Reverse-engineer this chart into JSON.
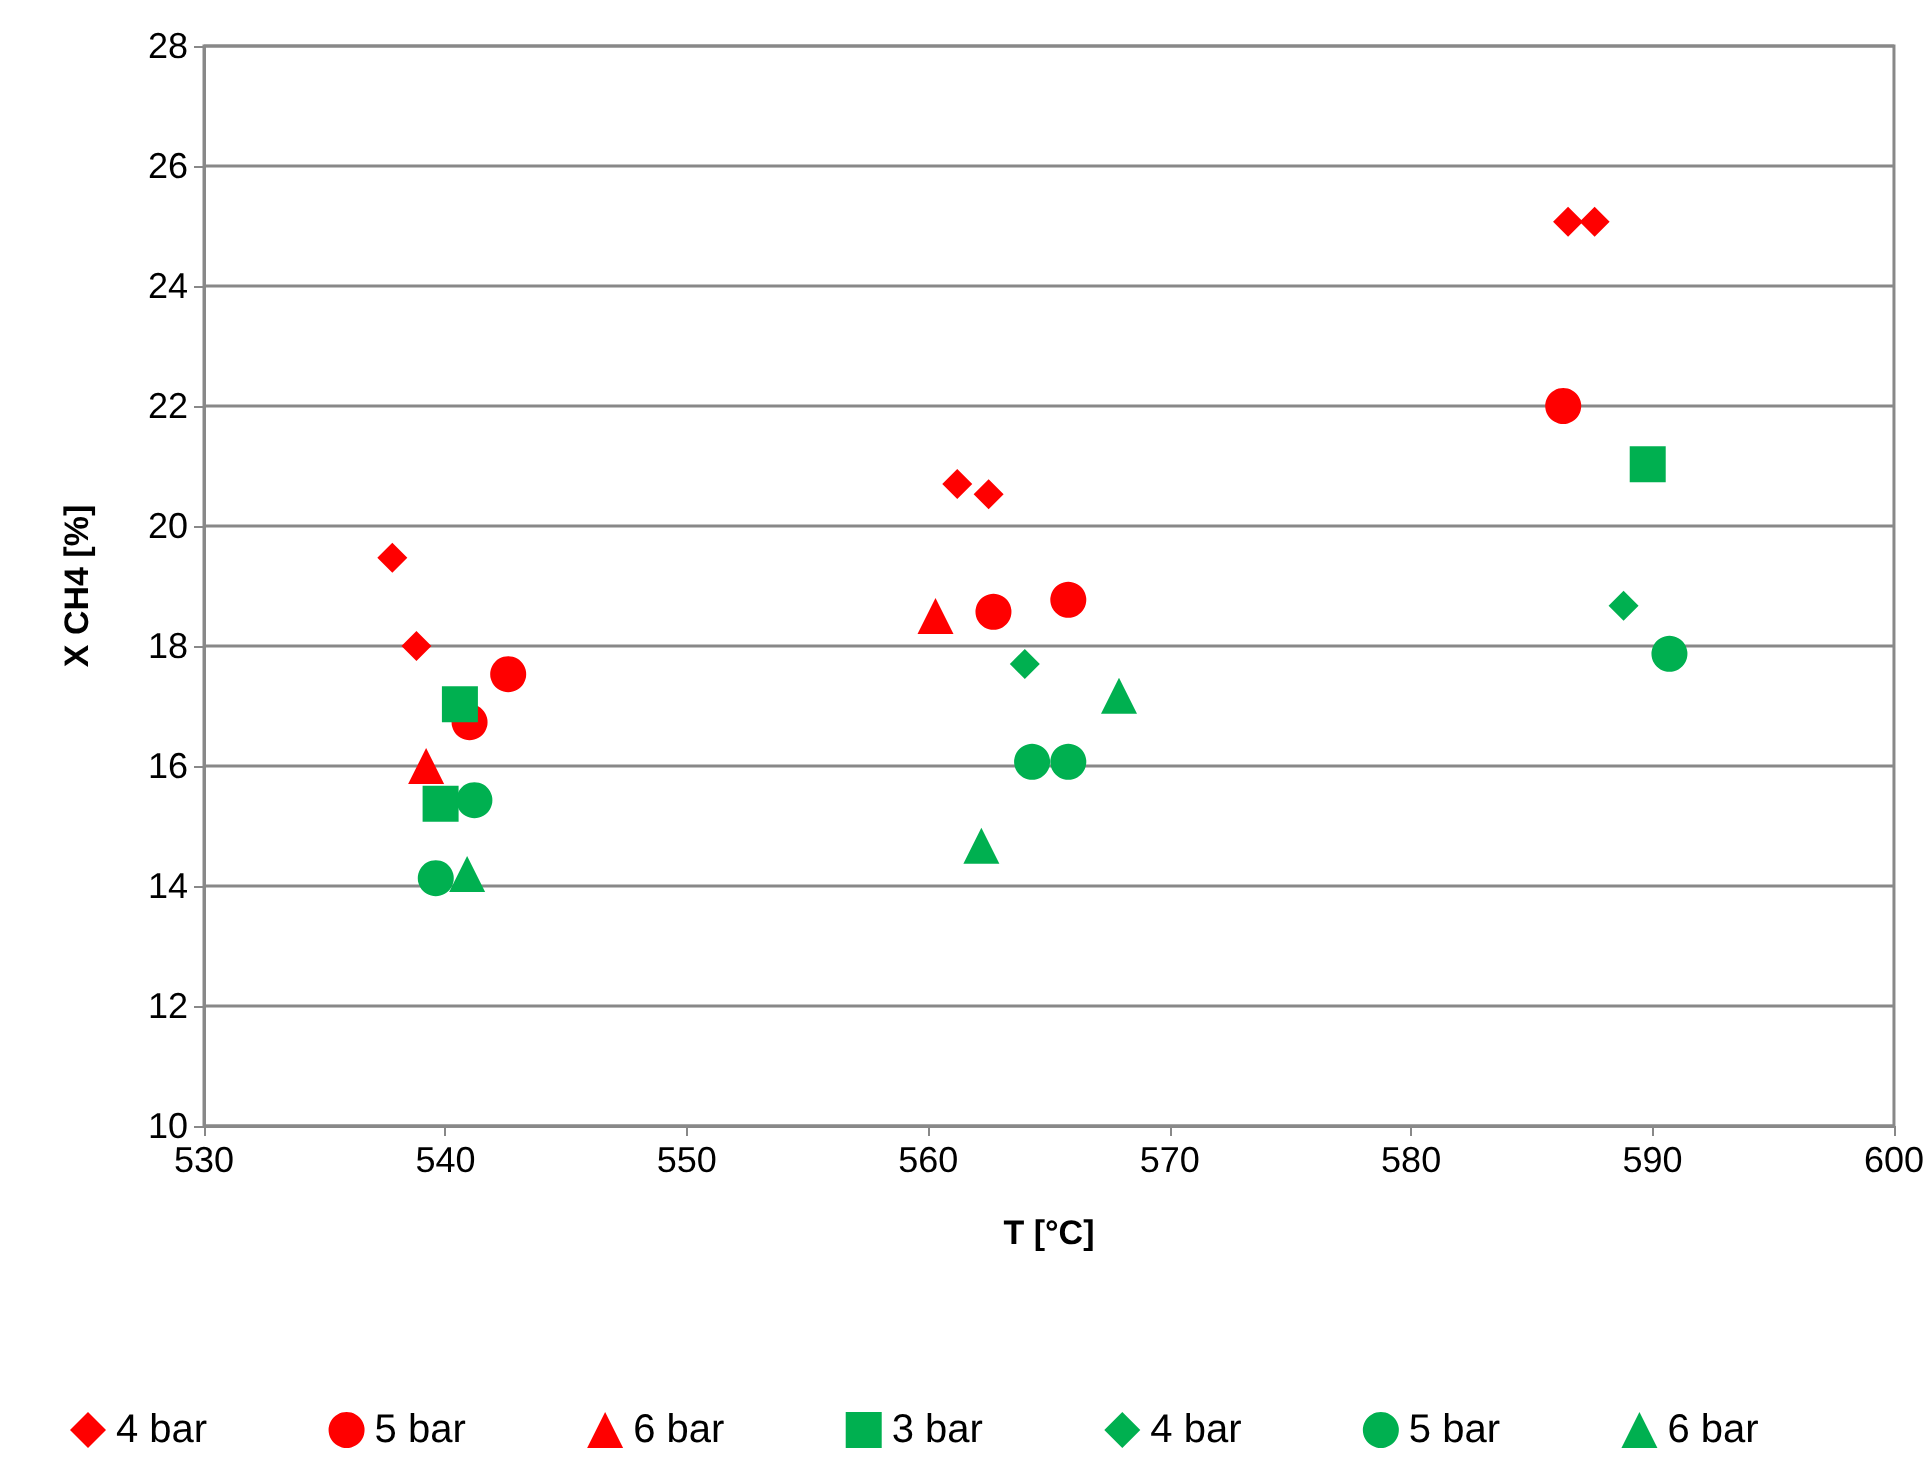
{
  "chart_data": {
    "type": "scatter",
    "xlabel": "T [°C]",
    "ylabel": "X CH4 [%]",
    "xlim": [
      530,
      600
    ],
    "xticks": [
      530,
      540,
      550,
      560,
      570,
      580,
      590,
      600
    ],
    "ylim": [
      10,
      28
    ],
    "yticks": [
      10,
      12,
      14,
      16,
      18,
      20,
      22,
      24,
      26,
      28
    ],
    "grid": "y",
    "legend": "bottom",
    "series": [
      {
        "name": "4 bar",
        "color": "#ff0000",
        "marker": "diamond",
        "x": [
          537.8,
          538.8,
          561.2,
          562.5,
          586.5,
          587.6
        ],
        "values": [
          19.47,
          18.0,
          20.7,
          20.53,
          25.07,
          25.07
        ]
      },
      {
        "name": "5 bar",
        "color": "#ff0000",
        "marker": "circle",
        "x": [
          542.6,
          541.0,
          562.7,
          565.8,
          586.3
        ],
        "values": [
          17.53,
          16.73,
          18.57,
          18.77,
          22.0
        ]
      },
      {
        "name": "6 bar",
        "color": "#ff0000",
        "marker": "triangle",
        "x": [
          539.2,
          560.3
        ],
        "values": [
          16.0,
          18.5
        ]
      },
      {
        "name": "3 bar",
        "color": "#00b050",
        "marker": "square",
        "x": [
          540.6,
          539.8,
          589.8
        ],
        "values": [
          17.03,
          15.37,
          21.03
        ]
      },
      {
        "name": "4 bar",
        "color": "#00b050",
        "marker": "diamond",
        "x": [
          564.0,
          588.8
        ],
        "values": [
          17.7,
          18.67
        ]
      },
      {
        "name": "5 bar",
        "color": "#00b050",
        "marker": "circle",
        "x": [
          539.6,
          541.2,
          564.3,
          565.8,
          590.7
        ],
        "values": [
          14.13,
          15.43,
          16.07,
          16.07,
          17.87
        ]
      },
      {
        "name": "6 bar",
        "color": "#00b050",
        "marker": "triangle",
        "x": [
          540.9,
          562.2,
          567.9
        ],
        "values": [
          14.2,
          14.67,
          17.17
        ]
      }
    ]
  }
}
